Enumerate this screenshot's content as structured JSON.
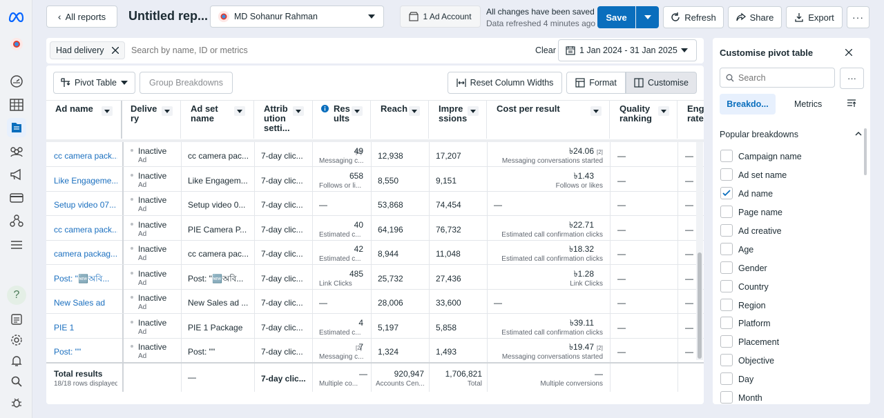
{
  "topbar": {
    "back_label": "All reports",
    "report_title": "Untitled rep...",
    "account_name": "MD Sohanur Rahman",
    "ad_account_label": "1 Ad Account",
    "save_status": "All changes have been saved",
    "refresh_status": "Data refreshed 4 minutes ago",
    "save_label": "Save",
    "refresh_label": "Refresh",
    "share_label": "Share",
    "export_label": "Export"
  },
  "filters": {
    "chip_label": "Had delivery",
    "search_placeholder": "Search by name, ID or metrics",
    "clear_label": "Clear",
    "date_range": "1 Jan 2024 - 31 Jan 2025"
  },
  "toolbar": {
    "pivot_label": "Pivot Table",
    "group_label": "Group Breakdowns",
    "reset_label": "Reset Column Widths",
    "format_label": "Format",
    "customise_label": "Customise"
  },
  "columns": {
    "ad_name": "Ad name",
    "delivery_1": "Delive",
    "delivery_2": "ry",
    "ad_set_1": "Ad set",
    "ad_set_2": "name",
    "attr_1": "Attrib",
    "attr_2": "ution",
    "attr_3": "setti...",
    "results_1": "Res",
    "results_2": "ults",
    "reach": "Reach",
    "impr_1": "Impre",
    "impr_2": "ssions",
    "cpr": "Cost per result",
    "quality_1": "Quality",
    "quality_2": "ranking",
    "eng_1": "Eng",
    "eng_2": "rate"
  },
  "rows": [
    {
      "ad": "cc camera pack...",
      "status": "Inactive",
      "type": "Ad",
      "adset": "cc camera pac...",
      "attr": "7-day clic...",
      "res": "49",
      "res_note": "[2]",
      "res_sub": "Messaging c...",
      "reach": "12,938",
      "impr": "17,207",
      "cost": "৳24.06",
      "cost_note": "[2]",
      "cost_sub": "Messaging conversations started",
      "quality": "—",
      "eng": "—"
    },
    {
      "ad": "Like Engageme...",
      "status": "Inactive",
      "type": "Ad",
      "adset": "Like Engagem...",
      "attr": "7-day clic...",
      "res": "658",
      "res_note": "",
      "res_sub": "Follows or li...",
      "reach": "8,550",
      "impr": "9,151",
      "cost": "৳1.43",
      "cost_note": "",
      "cost_sub": "Follows or likes",
      "quality": "—",
      "eng": "—"
    },
    {
      "ad": "Setup video 07...",
      "status": "Inactive",
      "type": "Ad",
      "adset": "Setup video 0...",
      "attr": "7-day clic...",
      "res": "—",
      "res_note": "",
      "res_sub": "",
      "reach": "53,868",
      "impr": "74,454",
      "cost": "—",
      "cost_note": "",
      "cost_sub": "",
      "quality": "—",
      "eng": "—"
    },
    {
      "ad": "cc camera pack...",
      "status": "Inactive",
      "type": "Ad",
      "adset": "PIE Camera P...",
      "attr": "7-day clic...",
      "res": "40",
      "res_note": "",
      "res_sub": "Estimated c...",
      "reach": "64,196",
      "impr": "76,732",
      "cost": "৳22.71",
      "cost_note": "",
      "cost_sub": "Estimated call confirmation clicks",
      "quality": "—",
      "eng": "—"
    },
    {
      "ad": "camera packag...",
      "status": "Inactive",
      "type": "Ad",
      "adset": "cc camera pac...",
      "attr": "7-day clic...",
      "res": "42",
      "res_note": "",
      "res_sub": "Estimated c...",
      "reach": "8,944",
      "impr": "11,048",
      "cost": "৳18.32",
      "cost_note": "",
      "cost_sub": "Estimated call confirmation clicks",
      "quality": "—",
      "eng": "—"
    },
    {
      "ad": "Post: \"🆕অবি...",
      "status": "Inactive",
      "type": "Ad",
      "adset": "Post: \"🆕অবি...",
      "attr": "7-day clic...",
      "res": "485",
      "res_note": "",
      "res_sub": "Link Clicks",
      "reach": "25,732",
      "impr": "27,436",
      "cost": "৳1.28",
      "cost_note": "",
      "cost_sub": "Link Clicks",
      "quality": "—",
      "eng": "—"
    },
    {
      "ad": "New Sales ad",
      "status": "Inactive",
      "type": "Ad",
      "adset": "New Sales ad ...",
      "attr": "7-day clic...",
      "res": "—",
      "res_note": "",
      "res_sub": "",
      "reach": "28,006",
      "impr": "33,600",
      "cost": "—",
      "cost_note": "",
      "cost_sub": "",
      "quality": "—",
      "eng": "—"
    },
    {
      "ad": "PIE 1",
      "status": "Inactive",
      "type": "Ad",
      "adset": "PIE 1 Package",
      "attr": "7-day clic...",
      "res": "4",
      "res_note": "",
      "res_sub": "Estimated c...",
      "reach": "5,197",
      "impr": "5,858",
      "cost": "৳39.11",
      "cost_note": "",
      "cost_sub": "Estimated call confirmation clicks",
      "quality": "—",
      "eng": "—"
    },
    {
      "ad": "Post: \"\"",
      "status": "Inactive",
      "type": "Ad",
      "adset": "Post: \"\"",
      "attr": "7-day clic...",
      "res": "7",
      "res_note": "[2]",
      "res_sub": "Messaging c...",
      "reach": "1,324",
      "impr": "1,493",
      "cost": "৳19.47",
      "cost_note": "[2]",
      "cost_sub": "Messaging conversations started",
      "quality": "—",
      "eng": "—"
    }
  ],
  "totals": {
    "label": "Total results",
    "sub": "18/18 rows displayed",
    "adset": "—",
    "attr": "7-day clic...",
    "res": "—",
    "res_sub": "Multiple co...",
    "reach": "920,947",
    "reach_sub": "Accounts Cen...",
    "impr": "1,706,821",
    "impr_sub": "Total",
    "cost": "—",
    "cost_sub": "Multiple conversions"
  },
  "panel": {
    "title": "Customise pivot table",
    "search_placeholder": "Search",
    "tab_breakdowns": "Breakdo...",
    "tab_metrics": "Metrics",
    "section": "Popular breakdowns",
    "items": [
      "Campaign name",
      "Ad set name",
      "Ad name",
      "Page name",
      "Ad creative",
      "Age",
      "Gender",
      "Country",
      "Region",
      "Platform",
      "Placement",
      "Objective",
      "Day",
      "Month"
    ],
    "checked_item": "Ad name"
  },
  "colors": {
    "accent": "#0a6ebd",
    "link": "#1a6fbf",
    "meta_blue": "#0866ff"
  }
}
